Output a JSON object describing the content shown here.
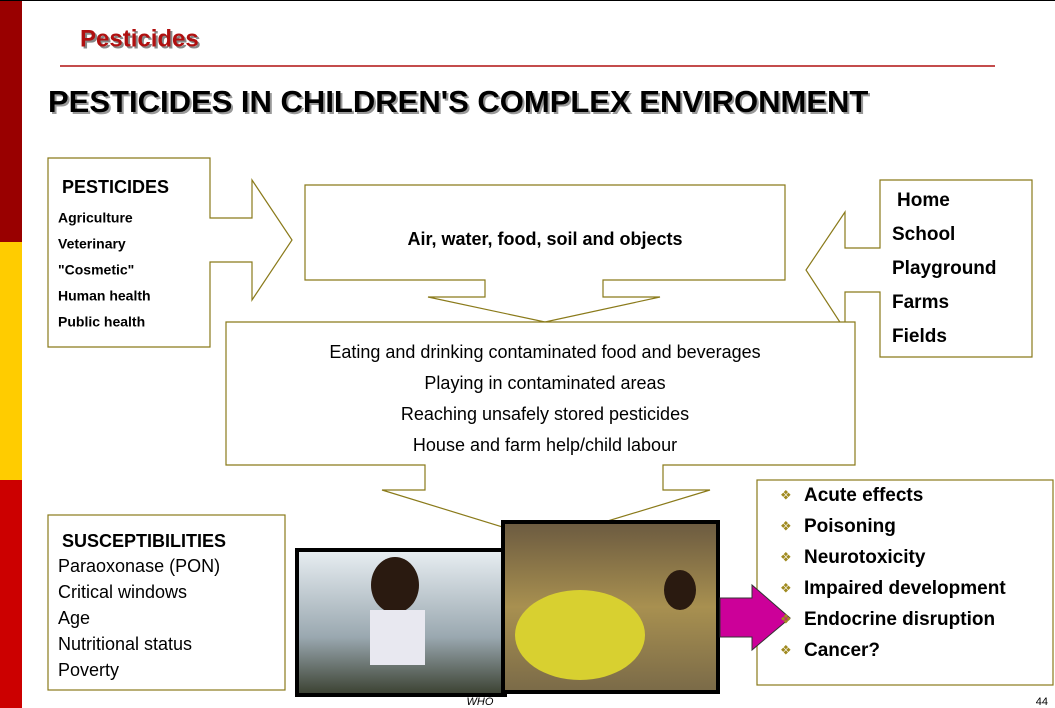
{
  "header": {
    "section": "Pesticides",
    "title": "PESTICIDES IN CHILDREN'S COMPLEX ENVIRONMENT",
    "page_number": "44"
  },
  "sources": {
    "title": "PESTICIDES",
    "items": [
      "Agriculture",
      "Veterinary",
      "\"Cosmetic\"",
      "Human health",
      "Public health"
    ]
  },
  "media": {
    "label": "Air, water, food, soil and objects"
  },
  "places": {
    "items": [
      "Home",
      "School",
      "Playground",
      "Farms",
      "Fields"
    ]
  },
  "exposure": {
    "items": [
      "Eating and drinking contaminated food and beverages",
      "Playing in contaminated areas",
      "Reaching unsafely stored pesticides",
      "House and farm help/child labour"
    ]
  },
  "susceptibilities": {
    "title": "SUSCEPTIBILITIES",
    "items": [
      "Paraoxonase (PON)",
      "Critical windows",
      "Age",
      "Nutritional status",
      "Poverty"
    ]
  },
  "effects": {
    "items": [
      "Acute effects",
      "Poisoning",
      "Neurotoxicity",
      "Impaired development",
      "Endocrine disruption",
      "Cancer?"
    ]
  },
  "photo_credit": "WHO"
}
